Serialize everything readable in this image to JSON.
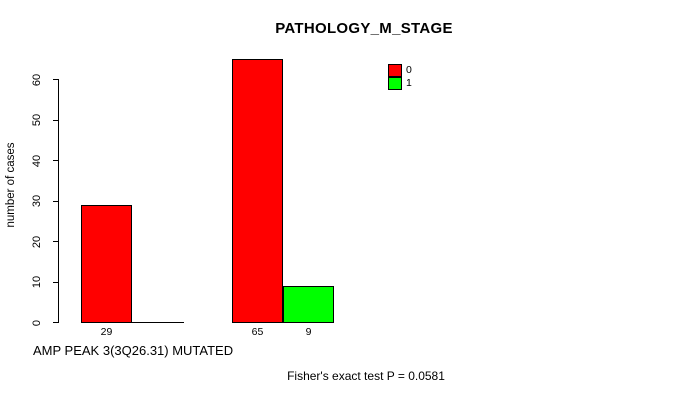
{
  "chart_data": {
    "type": "bar",
    "title": "PATHOLOGY_M_STAGE",
    "ylabel": "number of cases",
    "xlabel": "AMP PEAK 3(3Q26.31) MUTATED",
    "annotation": "Fisher's exact test P = 0.0581",
    "categories": [
      "",
      ""
    ],
    "series": [
      {
        "name": "0",
        "color": "#ff0000",
        "values": [
          29,
          65
        ]
      },
      {
        "name": "1",
        "color": "#00ff00",
        "values": [
          0,
          9
        ]
      }
    ],
    "bar_value_labels_shown": [
      "29",
      "65",
      "9"
    ],
    "ylim": [
      0,
      60
    ],
    "yticks": [
      0,
      10,
      20,
      30,
      40,
      50,
      60
    ],
    "grid": false,
    "legend": {
      "position": "top-right",
      "entries": [
        {
          "label": "0",
          "color": "#ff0000"
        },
        {
          "label": "1",
          "color": "#00ff00"
        }
      ]
    },
    "axis_color": "#000000",
    "background_color": "#ffffff"
  }
}
